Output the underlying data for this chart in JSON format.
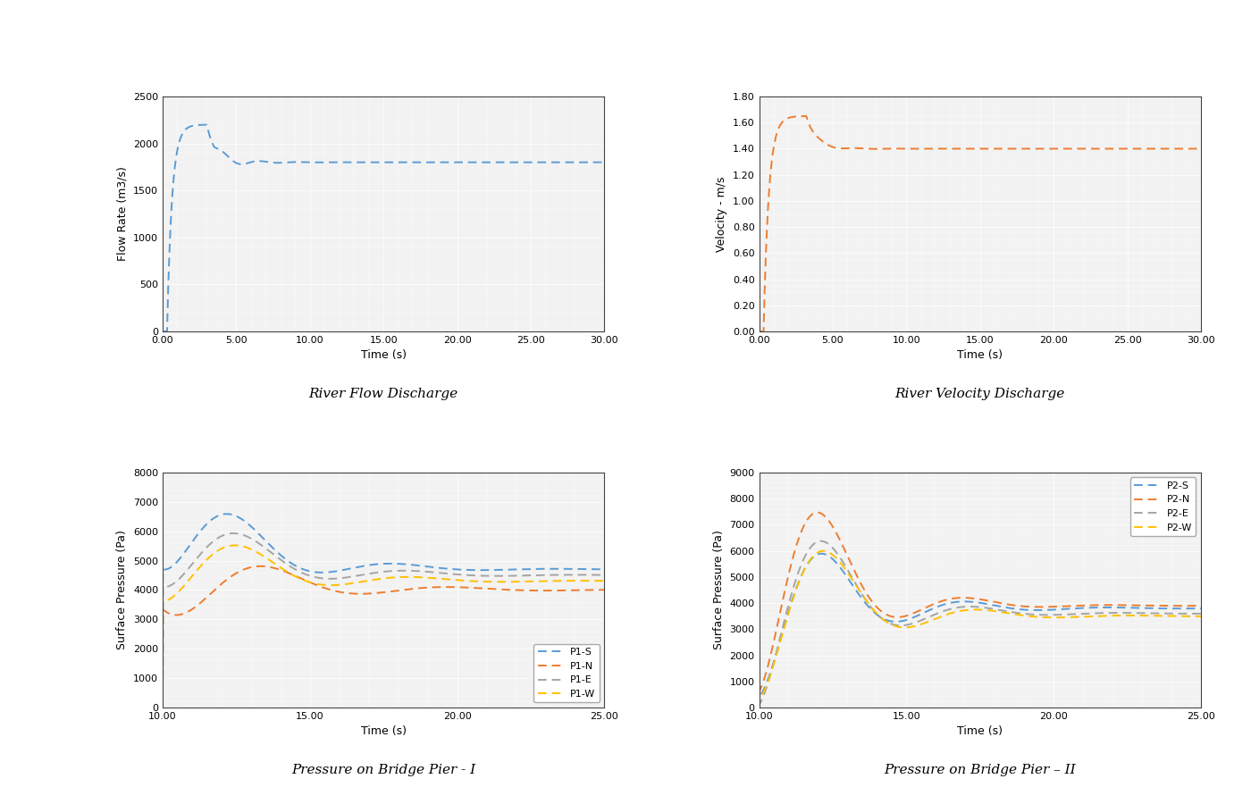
{
  "fig_bg": "#ffffff",
  "plot_bg": "#f2f2f2",
  "grid_color": "#ffffff",
  "chart1": {
    "xlabel": "Time (s)",
    "ylabel": "Flow Rate (m3/s)",
    "xlim": [
      0,
      30
    ],
    "ylim": [
      0,
      2500
    ],
    "xticks": [
      0.0,
      5.0,
      10.0,
      15.0,
      20.0,
      25.0,
      30.0
    ],
    "yticks": [
      0,
      500,
      1000,
      1500,
      2000,
      2500
    ],
    "color": "#5B9BD5",
    "linestyle": "--"
  },
  "chart2": {
    "xlabel": "Time (s)",
    "ylabel": "Velocity - m/s",
    "xlim": [
      0,
      30
    ],
    "ylim": [
      0.0,
      1.8
    ],
    "xticks": [
      0.0,
      5.0,
      10.0,
      15.0,
      20.0,
      25.0,
      30.0
    ],
    "yticks": [
      0.0,
      0.2,
      0.4,
      0.6,
      0.8,
      1.0,
      1.2,
      1.4,
      1.6,
      1.8
    ],
    "color": "#ED7D31",
    "linestyle": "--"
  },
  "chart3": {
    "xlabel": "Time (s)",
    "ylabel": "Surface Pressure (Pa)",
    "xlim": [
      10,
      25
    ],
    "ylim": [
      0,
      8000
    ],
    "xticks": [
      10.0,
      15.0,
      20.0,
      25.0
    ],
    "yticks": [
      0,
      1000,
      2000,
      3000,
      4000,
      5000,
      6000,
      7000,
      8000
    ],
    "series": [
      {
        "label": "P1-S",
        "color": "#5B9BD5",
        "linestyle": "--"
      },
      {
        "label": "P1-N",
        "color": "#ED7D31",
        "linestyle": "--"
      },
      {
        "label": "P1-E",
        "color": "#A5A5A5",
        "linestyle": "--"
      },
      {
        "label": "P1-W",
        "color": "#FFC000",
        "linestyle": "--"
      }
    ]
  },
  "chart4": {
    "xlabel": "Time (s)",
    "ylabel": "Surface Pressure (Pa)",
    "xlim": [
      10,
      25
    ],
    "ylim": [
      0,
      9000
    ],
    "xticks": [
      10.0,
      15.0,
      20.0,
      25.0
    ],
    "yticks": [
      0,
      1000,
      2000,
      3000,
      4000,
      5000,
      6000,
      7000,
      8000,
      9000
    ],
    "series": [
      {
        "label": "P2-S",
        "color": "#5B9BD5",
        "linestyle": "--"
      },
      {
        "label": "P2-N",
        "color": "#ED7D31",
        "linestyle": "--"
      },
      {
        "label": "P2-E",
        "color": "#A5A5A5",
        "linestyle": "--"
      },
      {
        "label": "P2-W",
        "color": "#FFC000",
        "linestyle": "--"
      }
    ]
  },
  "title1": "River Flow Discharge",
  "title2": "River Velocity Discharge",
  "title3": "Pressure on Bridge Pier - I",
  "title4": "Pressure on Bridge Pier – II"
}
